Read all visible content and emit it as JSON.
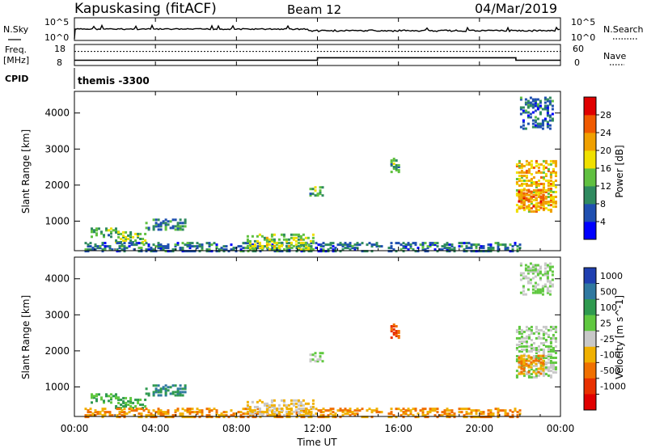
{
  "header": {
    "station": "Kapuskasing (fitACF)",
    "beam": "Beam 12",
    "date": "04/Mar/2019"
  },
  "summary": {
    "nsky_label": "N.Sky",
    "nsky_ticks": [
      "10^5",
      "10^0"
    ],
    "nsearch_label": "N.Search",
    "nsearch_ticks": [
      "10^5",
      "10^0"
    ],
    "freq_label": "Freq.",
    "freq_unit": "[MHz]",
    "freq_ticks": [
      "18",
      "8"
    ],
    "nave_label": "Nave",
    "nave_ticks": [
      "60",
      "0"
    ],
    "cpid_label": "CPID",
    "cpid_value": "themis -3300"
  },
  "x_axis": {
    "label": "Time UT",
    "ticks": [
      "00:00",
      "04:00",
      "08:00",
      "12:00",
      "16:00",
      "20:00",
      "00:00"
    ],
    "range_hours": [
      0,
      24
    ]
  },
  "power_panel": {
    "ylabel": "Slant Range [km]",
    "yticks": [
      1000,
      2000,
      3000,
      4000
    ],
    "colorbar_label": "Power [dB]",
    "colorbar_ticks": [
      "4",
      "8",
      "12",
      "16",
      "20",
      "24",
      "28"
    ],
    "colors": [
      "#0000ff",
      "#1f4fb0",
      "#2f8a5f",
      "#60c040",
      "#f0e000",
      "#f0a000",
      "#f05a00",
      "#e00000"
    ]
  },
  "velocity_panel": {
    "ylabel": "Slant Range [km]",
    "yticks": [
      1000,
      2000,
      3000,
      4000
    ],
    "colorbar_label": "Velocity [m s^-1]",
    "colorbar_ticks": [
      "1000",
      "500",
      "100",
      "25",
      "-25",
      "-100",
      "-500",
      "-1000"
    ],
    "colors": [
      "#1f3fb0",
      "#2f78a0",
      "#2f9a4f",
      "#60c840",
      "#c8c8c8",
      "#f0b000",
      "#f07000",
      "#e83000",
      "#e00000"
    ]
  },
  "chart_data": {
    "type": "heatmap",
    "x_range_hours": [
      0,
      24
    ],
    "y_range_km": [
      180,
      4600
    ],
    "freq_mhz": [
      {
        "start": 0,
        "end": 12,
        "value": 10.5
      },
      {
        "start": 12,
        "end": 21.8,
        "value": 11.7
      },
      {
        "start": 21.8,
        "end": 24,
        "value": 10.5
      }
    ],
    "nave_level": 40,
    "echo_regions": [
      {
        "t0": 0.8,
        "t1": 2.2,
        "r0": 600,
        "r1": 850,
        "power": 12,
        "velocity": 100
      },
      {
        "t0": 2.0,
        "t1": 3.5,
        "r0": 450,
        "r1": 750,
        "power": 14,
        "velocity": 100
      },
      {
        "t0": 3.5,
        "t1": 5.5,
        "r0": 800,
        "r1": 1100,
        "power": 10,
        "velocity": 500
      },
      {
        "t0": 0.5,
        "t1": 22.0,
        "r0": 200,
        "r1": 450,
        "power": 8,
        "velocity": -100
      },
      {
        "t0": 8.5,
        "t1": 11.8,
        "r0": 250,
        "r1": 700,
        "power": 16,
        "velocity": -25
      },
      {
        "t0": 11.6,
        "t1": 12.3,
        "r0": 1700,
        "r1": 2000,
        "power": 12,
        "velocity": 25
      },
      {
        "t0": 15.6,
        "t1": 16.0,
        "r0": 2400,
        "r1": 2800,
        "power": 12,
        "velocity": -500
      },
      {
        "t0": 21.8,
        "t1": 23.8,
        "r0": 1300,
        "r1": 2700,
        "power": 20,
        "velocity": 25
      },
      {
        "t0": 21.9,
        "t1": 23.2,
        "r0": 1400,
        "r1": 1900,
        "power": 24,
        "velocity": -100
      },
      {
        "t0": 22.0,
        "t1": 23.6,
        "r0": 3600,
        "r1": 4500,
        "power": 8,
        "velocity": 25
      }
    ]
  }
}
